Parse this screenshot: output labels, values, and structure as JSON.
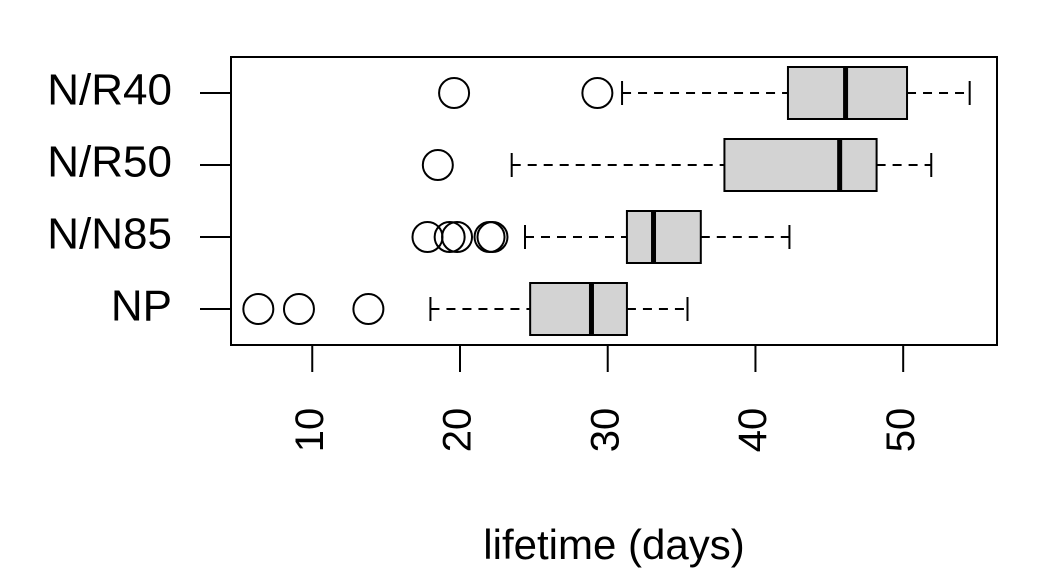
{
  "chart_data": {
    "type": "boxplot",
    "orientation": "horizontal",
    "xlabel": "lifetime (days)",
    "categories": [
      "NP",
      "N/N85",
      "N/R50",
      "N/R40"
    ],
    "color": "#d3d3d3",
    "boxes": [
      {
        "whislo": 18.0,
        "q1": 24.75,
        "med": 28.9,
        "q3": 31.3,
        "whishi": 35.4,
        "fliers": [
          6.35,
          9.1,
          13.8
        ]
      },
      {
        "whislo": 24.4,
        "q1": 31.3,
        "med": 33.1,
        "q3": 36.3,
        "whishi": 42.3,
        "fliers": [
          17.8,
          19.3,
          19.8,
          22.0,
          22.2
        ]
      },
      {
        "whislo": 23.5,
        "q1": 37.9,
        "med": 45.7,
        "q3": 48.2,
        "whishi": 51.9,
        "fliers": [
          18.5
        ]
      },
      {
        "whislo": 30.97,
        "q1": 42.2,
        "med": 46.1,
        "q3": 50.26,
        "whishi": 54.5,
        "fliers": [
          19.6,
          29.3
        ]
      }
    ],
    "xlim": [
      4.5,
      56.35
    ],
    "xticks": [
      10,
      20,
      30,
      40,
      50
    ]
  }
}
